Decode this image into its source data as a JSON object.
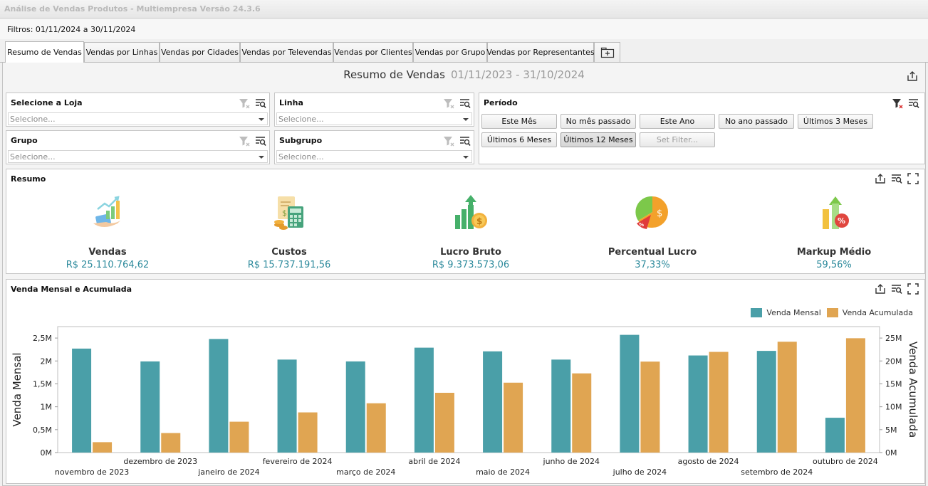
{
  "window": {
    "title": "Análise de Vendas Produtos - Multiempresa Versão 24.3.6"
  },
  "filters_text": "Filtros: 01/11/2024 a 30/11/2024",
  "tabs": [
    {
      "label": "Resumo de Vendas",
      "active": true
    },
    {
      "label": "Vendas por Linhas"
    },
    {
      "label": "Vendas por Cidades"
    },
    {
      "label": "Vendas por Televendas"
    },
    {
      "label": "Vendas por Clientes"
    },
    {
      "label": "Vendas por Grupo"
    },
    {
      "label": "Vendas por Representantes"
    }
  ],
  "dashboard": {
    "title": "Resumo de Vendas",
    "range": "01/11/2023 - 31/10/2024"
  },
  "filter_panels": {
    "loja": {
      "title": "Selecione a Loja",
      "placeholder": "Selecione..."
    },
    "linha": {
      "title": "Linha",
      "placeholder": "Selecione..."
    },
    "grupo": {
      "title": "Grupo",
      "placeholder": "Selecione..."
    },
    "subgrupo": {
      "title": "Subgrupo",
      "placeholder": "Selecione..."
    }
  },
  "periodo": {
    "title": "Período",
    "buttons": [
      {
        "label": "Este Mês"
      },
      {
        "label": "No mês passado"
      },
      {
        "label": "Este Ano"
      },
      {
        "label": "No ano passado"
      },
      {
        "label": "Últimos 3 Meses"
      },
      {
        "label": "Últimos 6 Meses"
      },
      {
        "label": "Últimos 12 Meses",
        "selected": true
      },
      {
        "label": "Set Filter...",
        "disabled": true
      }
    ]
  },
  "resumo": {
    "title": "Resumo",
    "kpis": [
      {
        "label": "Vendas",
        "value": "R$ 25.110.764,62",
        "icon": "sales-growth-icon"
      },
      {
        "label": "Custos",
        "value": "R$ 15.737.191,56",
        "icon": "calculator-costs-icon"
      },
      {
        "label": "Lucro Bruto",
        "value": "R$ 9.373.573,06",
        "icon": "profit-bars-icon"
      },
      {
        "label": "Percentual Lucro",
        "value": "37,33%",
        "icon": "pie-percent-icon"
      },
      {
        "label": "Markup Médio",
        "value": "59,56%",
        "icon": "markup-arrow-icon"
      }
    ]
  },
  "chart_panel": {
    "title": "Venda Mensal e Acumulada"
  },
  "colors": {
    "mensal": "#4a9fa8",
    "acumulada": "#e0a552",
    "accent_value": "#2d8a9c"
  },
  "chart_data": {
    "type": "bar",
    "categories": [
      "novembro de 2023",
      "dezembro de 2023",
      "janeiro de 2024",
      "fevereiro de 2024",
      "março de 2024",
      "abril de 2024",
      "maio de 2024",
      "junho de 2024",
      "julho de 2024",
      "agosto de 2024",
      "setembro de 2024",
      "outubro de 2024"
    ],
    "series": [
      {
        "name": "Venda Mensal",
        "axis": "left",
        "values": [
          2270000,
          1990000,
          2480000,
          2030000,
          1990000,
          2290000,
          2210000,
          2030000,
          2570000,
          2120000,
          2220000,
          760000
        ]
      },
      {
        "name": "Venda Acumulada",
        "axis": "right",
        "values": [
          2270000,
          4260000,
          6740000,
          8770000,
          10760000,
          13050000,
          15260000,
          17290000,
          19860000,
          21980000,
          24200000,
          24960000
        ]
      }
    ],
    "ylabel_left": "Venda Mensal",
    "ylabel_right": "Venda Acumulada",
    "ylim_left": [
      0,
      2750000
    ],
    "ylim_right": [
      0,
      27500000
    ],
    "yticks_left": [
      "0M",
      "0,5M",
      "1M",
      "1,5M",
      "2M",
      "2,5M"
    ],
    "yticks_right": [
      "0M",
      "5M",
      "10M",
      "15M",
      "20M",
      "25M"
    ],
    "legend": "top-right",
    "grid": false
  }
}
